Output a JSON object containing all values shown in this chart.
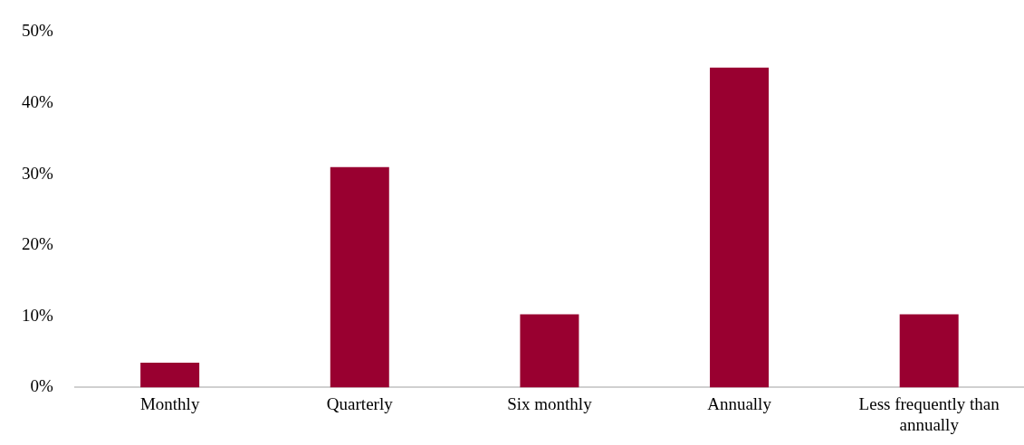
{
  "chart_data": {
    "type": "bar",
    "categories": [
      "Monthly",
      "Quarterly",
      "Six monthly",
      "Annually",
      "Less frequently than annually"
    ],
    "values": [
      3.5,
      31,
      10.3,
      45,
      10.3
    ],
    "color": "#990030",
    "ylim": [
      0,
      50
    ],
    "yticks": [
      {
        "value": 0,
        "label": "0%"
      },
      {
        "value": 10,
        "label": "10%"
      },
      {
        "value": 20,
        "label": "20%"
      },
      {
        "value": 30,
        "label": "30%"
      },
      {
        "value": 40,
        "label": "40%"
      },
      {
        "value": 50,
        "label": "50%"
      }
    ],
    "grid": false,
    "legend": false
  }
}
